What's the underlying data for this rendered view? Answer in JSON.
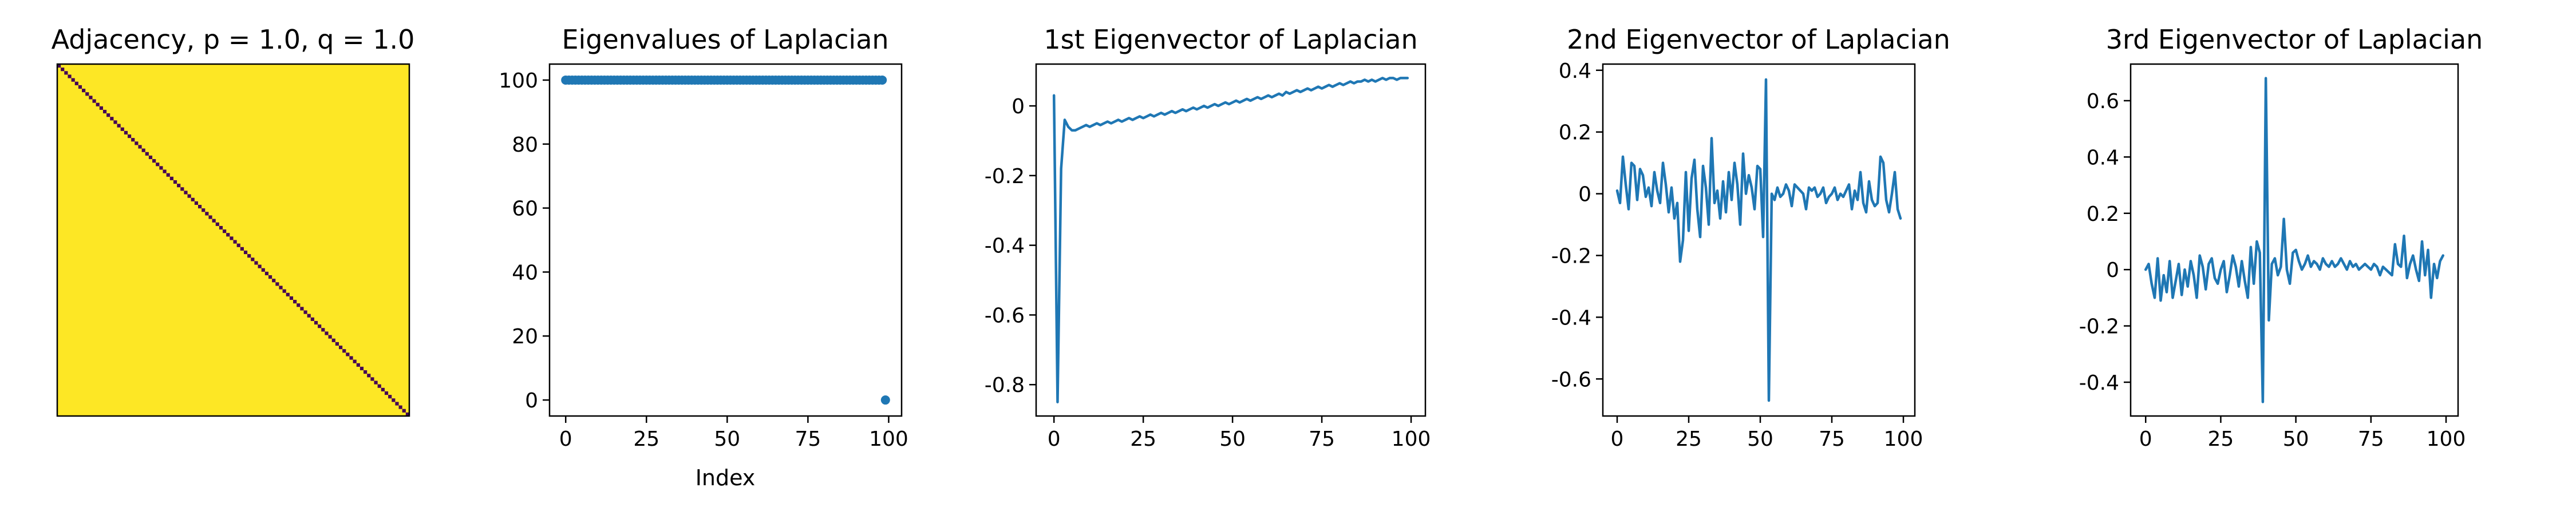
{
  "chart_data": [
    {
      "type": "heatmap",
      "title": "Adjacency, p = 1.0, q = 1.0",
      "matrix_size": 100,
      "off_diagonal_color": "#FDE725",
      "diagonal_color": "#440154",
      "off_diagonal_value": 1,
      "diagonal_value": 0,
      "axes_visible": false
    },
    {
      "type": "scatter",
      "title": "Eigenvalues of Laplacian",
      "xlabel": "Index",
      "ylabel": "",
      "xlim": [
        -5,
        104
      ],
      "ylim": [
        -5,
        105
      ],
      "xticks": [
        0,
        25,
        50,
        75,
        100
      ],
      "yticks": [
        0,
        20,
        40,
        60,
        80,
        100
      ],
      "color": "#1f77b4",
      "series": [
        {
          "x": [
            0,
            1,
            2,
            3,
            4,
            5,
            6,
            7,
            8,
            9,
            10,
            11,
            12,
            13,
            14,
            15,
            16,
            17,
            18,
            19,
            20,
            21,
            22,
            23,
            24,
            25,
            26,
            27,
            28,
            29,
            30,
            31,
            32,
            33,
            34,
            35,
            36,
            37,
            38,
            39,
            40,
            41,
            42,
            43,
            44,
            45,
            46,
            47,
            48,
            49,
            50,
            51,
            52,
            53,
            54,
            55,
            56,
            57,
            58,
            59,
            60,
            61,
            62,
            63,
            64,
            65,
            66,
            67,
            68,
            69,
            70,
            71,
            72,
            73,
            74,
            75,
            76,
            77,
            78,
            79,
            80,
            81,
            82,
            83,
            84,
            85,
            86,
            87,
            88,
            89,
            90,
            91,
            92,
            93,
            94,
            95,
            96,
            97,
            98
          ],
          "y": [
            100,
            100,
            100,
            100,
            100,
            100,
            100,
            100,
            100,
            100,
            100,
            100,
            100,
            100,
            100,
            100,
            100,
            100,
            100,
            100,
            100,
            100,
            100,
            100,
            100,
            100,
            100,
            100,
            100,
            100,
            100,
            100,
            100,
            100,
            100,
            100,
            100,
            100,
            100,
            100,
            100,
            100,
            100,
            100,
            100,
            100,
            100,
            100,
            100,
            100,
            100,
            100,
            100,
            100,
            100,
            100,
            100,
            100,
            100,
            100,
            100,
            100,
            100,
            100,
            100,
            100,
            100,
            100,
            100,
            100,
            100,
            100,
            100,
            100,
            100,
            100,
            100,
            100,
            100,
            100,
            100,
            100,
            100,
            100,
            100,
            100,
            100,
            100,
            100,
            100,
            100,
            100,
            100,
            100,
            100,
            100,
            100,
            100,
            100
          ]
        },
        {
          "x": [
            99
          ],
          "y": [
            0
          ]
        }
      ]
    },
    {
      "type": "line",
      "title": "1st Eigenvector of Laplacian",
      "xlabel": "",
      "ylabel": "",
      "xlim": [
        -5,
        104
      ],
      "ylim": [
        -0.89,
        0.12
      ],
      "xticks": [
        0,
        25,
        50,
        75,
        100
      ],
      "yticks": [
        0.0,
        -0.2,
        -0.4,
        -0.6,
        -0.8
      ],
      "color": "#1f77b4",
      "series": [
        {
          "x": [
            0,
            1,
            2,
            3,
            4,
            5,
            6,
            7,
            8,
            9,
            10,
            11,
            12,
            13,
            14,
            15,
            16,
            17,
            18,
            19,
            20,
            21,
            22,
            23,
            24,
            25,
            26,
            27,
            28,
            29,
            30,
            31,
            32,
            33,
            34,
            35,
            36,
            37,
            38,
            39,
            40,
            41,
            42,
            43,
            44,
            45,
            46,
            47,
            48,
            49,
            50,
            51,
            52,
            53,
            54,
            55,
            56,
            57,
            58,
            59,
            60,
            61,
            62,
            63,
            64,
            65,
            66,
            67,
            68,
            69,
            70,
            71,
            72,
            73,
            74,
            75,
            76,
            77,
            78,
            79,
            80,
            81,
            82,
            83,
            84,
            85,
            86,
            87,
            88,
            89,
            90,
            91,
            92,
            93,
            94,
            95,
            96,
            97,
            98,
            99
          ],
          "y": [
            0.03,
            -0.85,
            -0.18,
            -0.04,
            -0.06,
            -0.07,
            -0.07,
            -0.065,
            -0.06,
            -0.055,
            -0.06,
            -0.055,
            -0.05,
            -0.055,
            -0.05,
            -0.045,
            -0.05,
            -0.045,
            -0.04,
            -0.045,
            -0.04,
            -0.035,
            -0.04,
            -0.035,
            -0.03,
            -0.035,
            -0.03,
            -0.025,
            -0.03,
            -0.025,
            -0.02,
            -0.025,
            -0.02,
            -0.015,
            -0.02,
            -0.015,
            -0.01,
            -0.015,
            -0.01,
            -0.005,
            -0.01,
            -0.005,
            0.0,
            -0.005,
            0.0,
            0.005,
            0.0,
            0.005,
            0.01,
            0.005,
            0.01,
            0.015,
            0.01,
            0.015,
            0.02,
            0.015,
            0.02,
            0.025,
            0.02,
            0.025,
            0.03,
            0.025,
            0.03,
            0.035,
            0.03,
            0.04,
            0.035,
            0.04,
            0.045,
            0.04,
            0.045,
            0.05,
            0.045,
            0.05,
            0.055,
            0.05,
            0.055,
            0.06,
            0.055,
            0.06,
            0.065,
            0.06,
            0.065,
            0.07,
            0.065,
            0.07,
            0.07,
            0.075,
            0.07,
            0.075,
            0.07,
            0.075,
            0.08,
            0.075,
            0.08,
            0.08,
            0.075,
            0.08,
            0.08,
            0.08
          ]
        }
      ]
    },
    {
      "type": "line",
      "title": "2nd Eigenvector of Laplacian",
      "xlabel": "",
      "ylabel": "",
      "xlim": [
        -5,
        104
      ],
      "ylim": [
        -0.72,
        0.42
      ],
      "xticks": [
        0,
        25,
        50,
        75,
        100
      ],
      "yticks": [
        0.4,
        0.2,
        0.0,
        -0.2,
        -0.4,
        -0.6
      ],
      "color": "#1f77b4",
      "series": [
        {
          "x": [
            0,
            1,
            2,
            3,
            4,
            5,
            6,
            7,
            8,
            9,
            10,
            11,
            12,
            13,
            14,
            15,
            16,
            17,
            18,
            19,
            20,
            21,
            22,
            23,
            24,
            25,
            26,
            27,
            28,
            29,
            30,
            31,
            32,
            33,
            34,
            35,
            36,
            37,
            38,
            39,
            40,
            41,
            42,
            43,
            44,
            45,
            46,
            47,
            48,
            49,
            50,
            51,
            52,
            53,
            54,
            55,
            56,
            57,
            58,
            59,
            60,
            61,
            62,
            63,
            64,
            65,
            66,
            67,
            68,
            69,
            70,
            71,
            72,
            73,
            74,
            75,
            76,
            77,
            78,
            79,
            80,
            81,
            82,
            83,
            84,
            85,
            86,
            87,
            88,
            89,
            90,
            91,
            92,
            93,
            94,
            95,
            96,
            97,
            98,
            99
          ],
          "y": [
            0.01,
            -0.03,
            0.12,
            0.03,
            -0.05,
            0.1,
            0.09,
            -0.02,
            0.08,
            0.06,
            -0.01,
            0.02,
            -0.04,
            0.07,
            0.01,
            -0.03,
            0.1,
            0.03,
            -0.06,
            0.02,
            -0.08,
            -0.03,
            -0.22,
            -0.15,
            0.07,
            -0.12,
            0.05,
            0.11,
            -0.05,
            -0.14,
            0.09,
            0.02,
            -0.1,
            0.18,
            -0.03,
            0.01,
            -0.08,
            0.04,
            -0.06,
            0.07,
            -0.02,
            0.1,
            0.03,
            -0.1,
            0.13,
            0.0,
            0.06,
            0.02,
            -0.05,
            0.09,
            0.08,
            -0.14,
            0.37,
            -0.67,
            0.0,
            -0.02,
            0.02,
            -0.01,
            0.0,
            0.03,
            0.01,
            -0.04,
            0.03,
            0.02,
            0.01,
            0.0,
            -0.05,
            0.02,
            0.01,
            0.02,
            -0.01,
            0.0,
            0.02,
            -0.03,
            -0.01,
            0.0,
            0.02,
            -0.02,
            0.0,
            -0.01,
            0.01,
            0.03,
            -0.05,
            0.01,
            -0.02,
            0.07,
            -0.03,
            -0.06,
            0.04,
            -0.02,
            -0.04,
            -0.03,
            0.12,
            0.1,
            -0.02,
            -0.06,
            0.0,
            0.07,
            -0.05,
            -0.08
          ]
        }
      ]
    },
    {
      "type": "line",
      "title": "3rd Eigenvector of Laplacian",
      "xlabel": "",
      "ylabel": "",
      "xlim": [
        -5,
        104
      ],
      "ylim": [
        -0.52,
        0.73
      ],
      "xticks": [
        0,
        25,
        50,
        75,
        100
      ],
      "yticks": [
        0.6,
        0.4,
        0.2,
        0.0,
        -0.2,
        -0.4
      ],
      "color": "#1f77b4",
      "series": [
        {
          "x": [
            0,
            1,
            2,
            3,
            4,
            5,
            6,
            7,
            8,
            9,
            10,
            11,
            12,
            13,
            14,
            15,
            16,
            17,
            18,
            19,
            20,
            21,
            22,
            23,
            24,
            25,
            26,
            27,
            28,
            29,
            30,
            31,
            32,
            33,
            34,
            35,
            36,
            37,
            38,
            39,
            40,
            41,
            42,
            43,
            44,
            45,
            46,
            47,
            48,
            49,
            50,
            51,
            52,
            53,
            54,
            55,
            56,
            57,
            58,
            59,
            60,
            61,
            62,
            63,
            64,
            65,
            66,
            67,
            68,
            69,
            70,
            71,
            72,
            73,
            74,
            75,
            76,
            77,
            78,
            79,
            80,
            81,
            82,
            83,
            84,
            85,
            86,
            87,
            88,
            89,
            90,
            91,
            92,
            93,
            94,
            95,
            96,
            97,
            98,
            99
          ],
          "y": [
            0.0,
            0.02,
            -0.05,
            -0.1,
            0.04,
            -0.11,
            -0.02,
            -0.08,
            0.03,
            -0.1,
            -0.04,
            0.02,
            -0.09,
            0.0,
            -0.06,
            0.03,
            -0.02,
            -0.1,
            0.05,
            0.01,
            -0.07,
            0.02,
            0.04,
            -0.03,
            -0.05,
            0.0,
            0.03,
            -0.08,
            -0.02,
            0.05,
            0.01,
            -0.06,
            0.03,
            -0.04,
            -0.1,
            0.08,
            -0.05,
            0.1,
            0.06,
            -0.47,
            0.68,
            -0.18,
            0.02,
            0.04,
            -0.02,
            0.01,
            0.18,
            0.0,
            -0.05,
            0.06,
            0.07,
            0.03,
            0.0,
            0.02,
            0.05,
            0.01,
            0.03,
            0.02,
            0.0,
            0.04,
            0.02,
            0.01,
            0.03,
            0.01,
            0.02,
            0.04,
            0.02,
            0.0,
            0.03,
            0.01,
            0.02,
            0.0,
            0.01,
            0.02,
            0.01,
            0.0,
            0.02,
            0.01,
            -0.02,
            0.01,
            0.0,
            -0.01,
            -0.02,
            0.09,
            0.02,
            0.01,
            0.12,
            -0.03,
            0.02,
            0.05,
            0.0,
            -0.04,
            0.1,
            -0.02,
            0.07,
            -0.1,
            0.02,
            -0.03,
            0.03,
            0.05
          ]
        }
      ]
    }
  ]
}
